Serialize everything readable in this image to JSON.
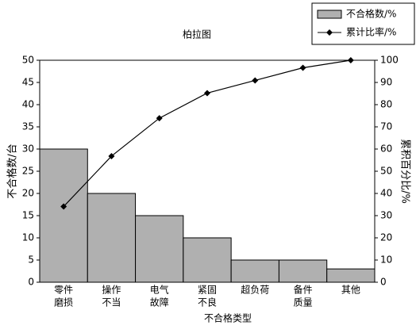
{
  "chart_data": {
    "type": "pareto",
    "title": "柏拉图",
    "x_label": "不合格类型",
    "y_label": "不合格数/台",
    "y2_label": "累积百分比/%",
    "categories": [
      [
        "零件",
        "磨损"
      ],
      [
        "操作",
        "不当"
      ],
      [
        "电气",
        "故障"
      ],
      [
        "紧固",
        "不良"
      ],
      [
        "超负荷"
      ],
      [
        "备件",
        "质量"
      ],
      [
        "其他"
      ]
    ],
    "series": [
      {
        "name": "不合格数/%",
        "color": "#b0b0b0",
        "values": [
          30,
          20,
          15,
          10,
          5,
          5,
          3
        ]
      },
      {
        "name": "累计比率/%",
        "color": "#000000",
        "axis": "y2",
        "values": [
          34.1,
          56.8,
          73.9,
          85.2,
          90.9,
          96.6,
          100
        ]
      }
    ],
    "ylim": [
      0,
      50
    ],
    "yticks": [
      0,
      5,
      10,
      15,
      20,
      25,
      30,
      35,
      40,
      45,
      50
    ],
    "y2lim": [
      0,
      100
    ],
    "y2ticks": [
      0,
      10,
      20,
      30,
      40,
      50,
      60,
      70,
      80,
      90,
      100
    ],
    "legend": "top-right"
  }
}
